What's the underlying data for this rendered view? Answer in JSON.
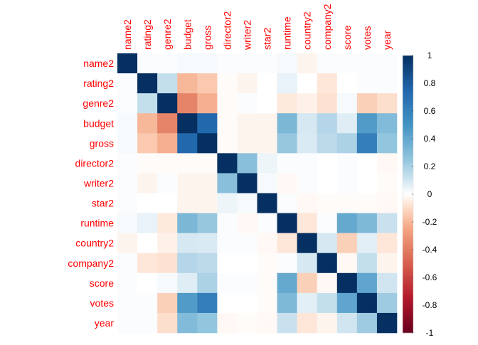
{
  "chart_data": {
    "type": "heatmap",
    "title": "",
    "variables": [
      "name2",
      "rating2",
      "genre2",
      "budget",
      "gross",
      "director2",
      "writer2",
      "star2",
      "runtime",
      "country2",
      "company2",
      "score",
      "votes",
      "year"
    ],
    "matrix": [
      [
        1.0,
        0.01,
        0.01,
        0.02,
        0.02,
        0.01,
        0.01,
        0.01,
        0.02,
        -0.03,
        0.01,
        0.01,
        0.01,
        0.01
      ],
      [
        0.01,
        1.0,
        0.13,
        -0.2,
        -0.15,
        -0.01,
        -0.03,
        0.0,
        0.05,
        0.0,
        -0.07,
        0.0,
        0.01,
        0.01
      ],
      [
        0.01,
        0.13,
        1.0,
        -0.37,
        -0.22,
        -0.01,
        0.01,
        0.0,
        -0.06,
        -0.04,
        -0.08,
        0.02,
        -0.13,
        -0.09
      ],
      [
        0.02,
        -0.2,
        -0.37,
        1.0,
        0.74,
        -0.01,
        -0.03,
        -0.03,
        0.32,
        0.09,
        0.17,
        0.07,
        0.46,
        0.3
      ],
      [
        0.02,
        -0.15,
        -0.22,
        0.74,
        1.0,
        -0.01,
        -0.03,
        -0.03,
        0.24,
        0.08,
        0.15,
        0.19,
        0.61,
        0.25
      ],
      [
        0.01,
        -0.01,
        -0.01,
        -0.01,
        -0.01,
        1.0,
        0.28,
        0.04,
        0.01,
        0.01,
        0.0,
        0.01,
        0.0,
        -0.02
      ],
      [
        0.01,
        -0.03,
        0.01,
        -0.03,
        -0.03,
        0.28,
        1.0,
        0.02,
        -0.02,
        0.01,
        0.0,
        0.01,
        0.0,
        -0.01
      ],
      [
        0.01,
        0.0,
        0.0,
        -0.03,
        -0.03,
        0.04,
        0.02,
        1.0,
        0.01,
        -0.02,
        -0.01,
        -0.01,
        -0.01,
        -0.02
      ],
      [
        0.02,
        0.05,
        -0.06,
        0.32,
        0.24,
        0.01,
        -0.02,
        0.01,
        1.0,
        -0.07,
        0.01,
        0.39,
        0.31,
        0.12
      ],
      [
        -0.03,
        0.0,
        -0.04,
        0.09,
        0.08,
        0.01,
        0.01,
        -0.02,
        -0.07,
        1.0,
        0.09,
        -0.13,
        0.06,
        -0.07
      ],
      [
        0.01,
        -0.07,
        -0.08,
        0.17,
        0.15,
        0.0,
        0.0,
        -0.01,
        0.01,
        0.09,
        1.0,
        -0.02,
        0.13,
        -0.03
      ],
      [
        0.01,
        0.0,
        0.02,
        0.07,
        0.19,
        0.01,
        0.01,
        -0.01,
        0.39,
        -0.13,
        -0.02,
        1.0,
        0.41,
        0.1
      ],
      [
        0.01,
        0.01,
        -0.13,
        0.46,
        0.61,
        0.0,
        0.0,
        -0.01,
        0.31,
        0.06,
        0.13,
        0.41,
        1.0,
        0.22
      ],
      [
        0.01,
        0.01,
        -0.09,
        0.3,
        0.25,
        -0.02,
        -0.01,
        -0.02,
        0.12,
        -0.07,
        -0.03,
        0.1,
        0.22,
        1.0
      ]
    ],
    "colorbar": {
      "ticks": [
        "1",
        "0.8",
        "0.6",
        "0.4",
        "0.2",
        "0",
        "-0.2",
        "-0.4",
        "-0.6",
        "-0.8",
        "-1"
      ],
      "range": [
        -1,
        1
      ]
    },
    "colors": {
      "label": "#FF0000",
      "positive_strong": "#053061",
      "negative_strong": "#67001F",
      "neutral": "#FFFFFF"
    }
  }
}
